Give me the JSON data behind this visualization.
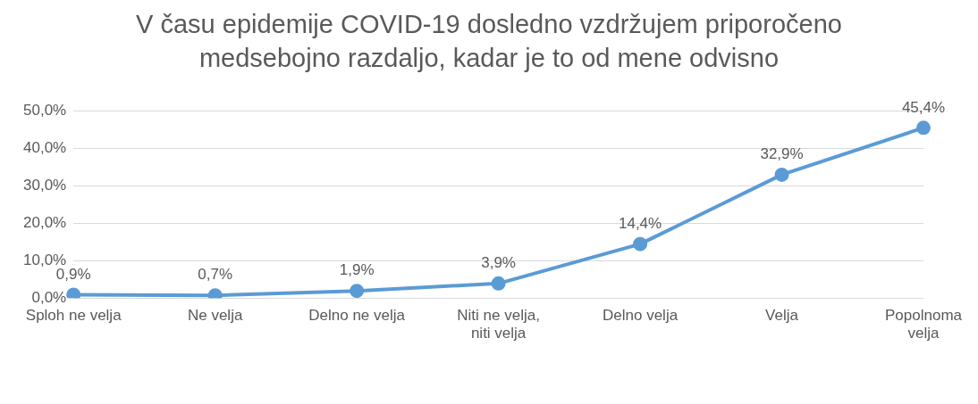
{
  "chart_data": {
    "type": "line",
    "title": "V času epidemije COVID-19 dosledno vzdržujem priporočeno medsebojno razdaljo, kadar je to od mene odvisno",
    "categories": [
      "Sploh ne velja",
      "Ne velja",
      "Delno ne velja",
      "Niti ne velja, niti velja",
      "Delno velja",
      "Velja",
      "Popolnoma velja"
    ],
    "series": [
      {
        "color": "#5b9bd5",
        "values": [
          0.9,
          0.7,
          1.9,
          3.9,
          14.4,
          32.9,
          45.4
        ],
        "value_labels": [
          "0,9%",
          "0,7%",
          "1,9%",
          "3,9%",
          "14,4%",
          "32,9%",
          "45,4%"
        ]
      }
    ],
    "ylim": [
      0,
      50
    ],
    "yticks": [
      {
        "value": 0,
        "label": "0,0%"
      },
      {
        "value": 10,
        "label": "10,0%"
      },
      {
        "value": 20,
        "label": "20,0%"
      },
      {
        "value": 30,
        "label": "30,0%"
      },
      {
        "value": 40,
        "label": "40,0%"
      },
      {
        "value": 50,
        "label": "50,0%"
      }
    ],
    "grid": "y",
    "legend": false,
    "marker": "circle",
    "line_style": "solid"
  }
}
